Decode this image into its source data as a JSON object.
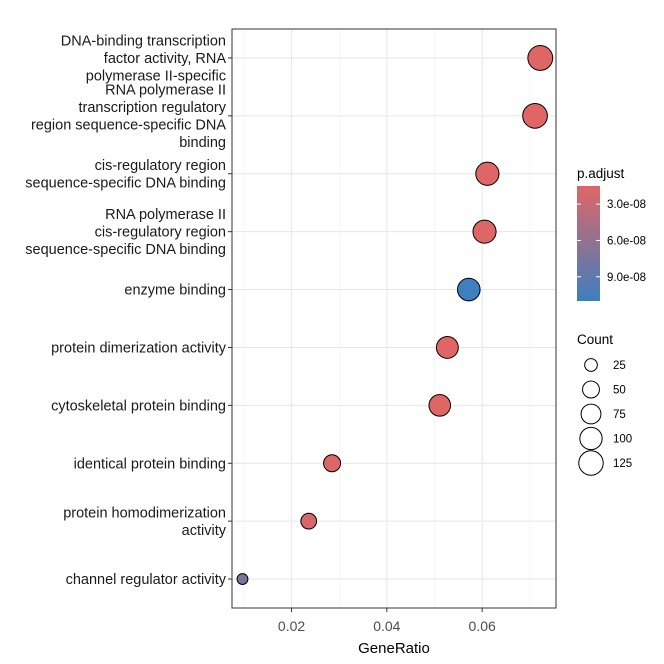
{
  "chart_data": {
    "type": "scatter",
    "xlabel": "GeneRatio",
    "xlim": [
      0.0075,
      0.0755
    ],
    "xticks": [
      0.02,
      0.04,
      0.06
    ],
    "xtick_labels": [
      "0.02",
      "0.04",
      "0.06"
    ],
    "grid": true,
    "categories": [
      [
        "DNA-binding transcription",
        "factor activity, RNA",
        "polymerase II-specific"
      ],
      [
        "RNA polymerase II",
        "transcription regulatory",
        "region sequence-specific DNA",
        "binding"
      ],
      [
        "cis-regulatory region",
        "sequence-specific DNA binding"
      ],
      [
        "RNA polymerase II",
        "cis-regulatory region",
        "sequence-specific DNA binding"
      ],
      [
        "enzyme binding"
      ],
      [
        "protein dimerization activity"
      ],
      [
        "cytoskeletal protein binding"
      ],
      [
        "identical protein binding"
      ],
      [
        "protein homodimerization",
        "activity"
      ],
      [
        "channel regulator activity"
      ]
    ],
    "points": [
      {
        "x": 0.0722,
        "count": 130,
        "p_adjust": 1.5e-08
      },
      {
        "x": 0.0711,
        "count": 128,
        "p_adjust": 1.5e-08
      },
      {
        "x": 0.0611,
        "count": 110,
        "p_adjust": 1.5e-08
      },
      {
        "x": 0.0605,
        "count": 109,
        "p_adjust": 1.6e-08
      },
      {
        "x": 0.0572,
        "count": 103,
        "p_adjust": 1.1e-07
      },
      {
        "x": 0.0527,
        "count": 95,
        "p_adjust": 1.5e-08
      },
      {
        "x": 0.0511,
        "count": 92,
        "p_adjust": 1.5e-08
      },
      {
        "x": 0.0285,
        "count": 51,
        "p_adjust": 1.6e-08
      },
      {
        "x": 0.0236,
        "count": 42,
        "p_adjust": 2e-08
      },
      {
        "x": 0.0097,
        "count": 18,
        "p_adjust": 7.5e-08
      }
    ],
    "color_legend": {
      "title": "p.adjust",
      "low_color": "#e06666",
      "high_color": "#3d7fbf",
      "range": [
        1.5e-08,
        1.1e-07
      ],
      "ticks": [
        3e-08,
        6e-08,
        9e-08
      ],
      "tick_labels": [
        "3.0e-08",
        "6.0e-08",
        "9.0e-08"
      ]
    },
    "size_legend": {
      "title": "Count",
      "values": [
        25,
        50,
        75,
        100,
        125
      ],
      "labels": [
        "25",
        "50",
        "75",
        "100",
        "125"
      ]
    }
  }
}
